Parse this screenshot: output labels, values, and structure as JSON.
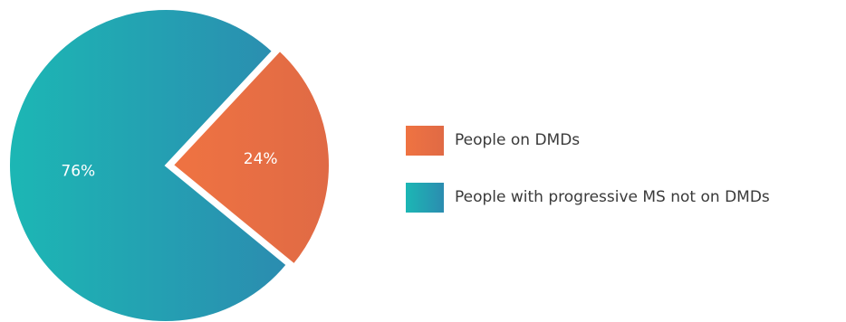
{
  "chart_data": {
    "type": "pie",
    "title": "",
    "slices": [
      {
        "label": "People on DMDs",
        "value": 24,
        "display": "24%",
        "color_start": "#ef7342",
        "color_end": "#e06a45"
      },
      {
        "label": "People with progressive MS not on DMDs",
        "value": 76,
        "display": "76%",
        "color_start": "#1cb7b4",
        "color_end": "#2b8cb0"
      }
    ],
    "legend_position": "right",
    "exploded_slice": "People on DMDs"
  }
}
